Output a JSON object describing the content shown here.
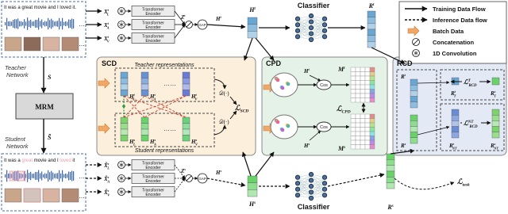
{
  "legend": {
    "training": "Training Data Flow",
    "inference": "Inference Data flow",
    "batch": "Batch Data",
    "concat": "Concatenation",
    "conv": "1D Convolution"
  },
  "input": {
    "teacher_sentence": "It was a great movie and I loved it.",
    "student_sentence": {
      "plain1": "It was a ",
      "masked1": "great",
      "plain2": " movie and I ",
      "masked2": "loved",
      "plain3": " it"
    },
    "ellipsis": "…"
  },
  "left": {
    "teacher_label": [
      "Teacher",
      "Network"
    ],
    "student_label": [
      "Student",
      "Network"
    ],
    "S": {
      "base": "S"
    },
    "S_masked": {
      "base": "S̃"
    },
    "mrm": "MRM"
  },
  "encoder": {
    "name": [
      "Transformer",
      "Encoder"
    ],
    "gap": "GAP",
    "classifier": "Classifier"
  },
  "teacher": {
    "X": [
      {
        "base": "X",
        "sub": "L",
        "sup": "t"
      },
      {
        "base": "X",
        "sub": "A",
        "sup": "t"
      },
      {
        "base": "X",
        "sub": "V",
        "sup": "t"
      }
    ],
    "Z": {
      "base": "Z",
      "sup": "t"
    },
    "H": {
      "base": "H",
      "sup": "t"
    },
    "R": {
      "base": "R",
      "sup": "t"
    }
  },
  "student": {
    "X": [
      {
        "base": "X̃",
        "sub": "L",
        "sup": "s"
      },
      {
        "base": "X̃",
        "sub": "A",
        "sup": "s"
      },
      {
        "base": "X̃",
        "sub": "V",
        "sup": "s"
      }
    ],
    "Z": {
      "base": "Z",
      "sup": "s"
    },
    "H": {
      "base": "H",
      "sup": "s"
    },
    "R": {
      "base": "R",
      "sup": "s"
    }
  },
  "scd": {
    "title": "SCD",
    "teacher_reps": "Teacher representations",
    "student_reps": "Student representations",
    "dots": "……",
    "H_t": [
      {
        "base": "H",
        "sub": "L",
        "sup": "t"
      },
      {
        "base": "H",
        "sub": "A",
        "sup": "t"
      },
      {
        "base": "H",
        "sub": "V",
        "sup": "t"
      }
    ],
    "H_s": [
      {
        "base": "H",
        "sub": "L",
        "sup": "s"
      },
      {
        "base": "H",
        "sub": "A",
        "sup": "s"
      },
      {
        "base": "H",
        "sub": "V",
        "sup": "s"
      }
    ],
    "D": "𝒟(·)",
    "loss": {
      "base": "ℒ",
      "sub": "SCD"
    }
  },
  "cpd": {
    "title": "CPD",
    "H_t": {
      "base": "H",
      "sup": "t"
    },
    "H_s": {
      "base": "H",
      "sup": "s"
    },
    "cos": "Cos",
    "M_t": {
      "base": "M",
      "sup": "t"
    },
    "M_s": {
      "base": "M",
      "sup": "s"
    },
    "loss": {
      "base": "ℒ",
      "sub": "CPD"
    }
  },
  "rcd": {
    "title": "RCD",
    "R_t": {
      "base": "R",
      "sup": "t"
    },
    "R_s": {
      "base": "R",
      "sup": "s"
    },
    "R_T_t": {
      "base": "R",
      "sub": "T",
      "sup": "t"
    },
    "R_T_s": {
      "base": "R",
      "sub": "T",
      "sup": "s"
    },
    "R_NT_t": {
      "base": "R",
      "sub": "NT",
      "sup": "t"
    },
    "R_NT_s": {
      "base": "R",
      "sub": "NT",
      "sup": "s"
    },
    "loss_T": {
      "base": "ℒ",
      "sub": "RCD",
      "sup": "T"
    },
    "loss_NT": {
      "base": "ℒ",
      "sub": "RCD",
      "sup": "NT"
    }
  },
  "task_loss": {
    "base": "ℒ",
    "sub": "task"
  }
}
